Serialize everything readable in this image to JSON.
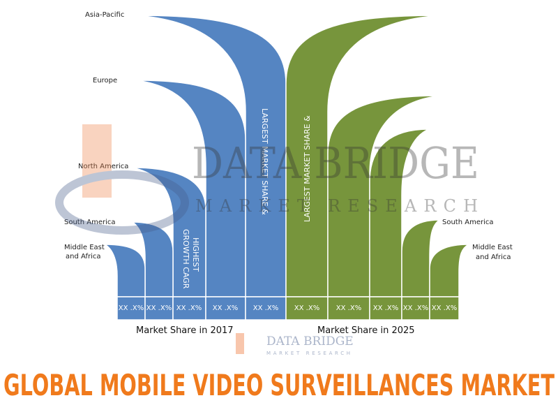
{
  "regions_left": {
    "asia_pacific": "Asia-Pacific",
    "europe": "Europe",
    "north_america": "North America",
    "south_america": "South America",
    "middle_east_africa": [
      "Middle East",
      "and Africa"
    ]
  },
  "regions_right": {
    "south_america": "South America",
    "middle_east_africa": [
      "Middle East",
      "and Africa"
    ]
  },
  "callouts": {
    "largest_2017": "LARGEST MARKET SHARE &",
    "largest_2025": "LARGEST MARKET SHARE &",
    "growth": [
      "HIGHEST",
      "GROWTH CAGR"
    ]
  },
  "shares_2017": [
    "XX .X%",
    "XX .X%",
    "XX .X%",
    "XX .X%",
    "XX .X%"
  ],
  "shares_2025": [
    "XX .X%",
    "XX .X%",
    "XX .X%",
    "XX .X%",
    "XX .X%"
  ],
  "captions": {
    "y2017": "Market Share in 2017",
    "y2025": "Market Share in 2025"
  },
  "watermark": {
    "brand": "DATA BRIDGE",
    "sub": "MARKET RESEARCH"
  },
  "title": "GLOBAL MOBILE VIDEO SURVEILLANCES MARKET"
}
